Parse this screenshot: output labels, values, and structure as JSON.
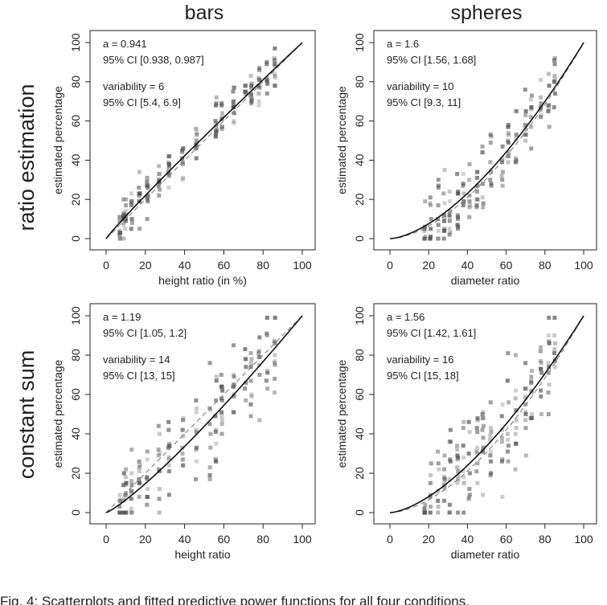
{
  "figure": {
    "caption": "Fig. 4: Scatterplots and fitted predictive power functions for all four conditions.",
    "col_titles": [
      "bars",
      "spheres"
    ],
    "row_titles": [
      "ratio estimation",
      "constant sum"
    ]
  },
  "chart_data": [
    {
      "type": "scatter",
      "id": "bars-ratio",
      "xlabel": "height ratio (in %)",
      "ylabel": "estimated percentage",
      "xlim": [
        0,
        100
      ],
      "ylim": [
        0,
        100
      ],
      "xticks": [
        0,
        20,
        40,
        60,
        80,
        100
      ],
      "yticks": [
        0,
        20,
        40,
        60,
        80,
        100
      ],
      "annotations": [
        "a = 0.941",
        "95% CI [0.938, 0.987]",
        "variability = 6",
        "95% CI [5.4, 6.9]"
      ],
      "fit": {
        "exponent": 0.941,
        "form": "y = 100 (x/100)^a"
      },
      "reference": "y = x (dashed)",
      "x_levels": [
        7,
        9,
        10,
        13,
        17,
        21,
        27,
        32,
        39,
        46,
        56,
        59,
        65,
        71,
        74,
        78,
        82,
        86
      ],
      "variability": 6,
      "seed": 11
    },
    {
      "type": "scatter",
      "id": "spheres-ratio",
      "xlabel": "diameter ratio",
      "ylabel": "estimated percentage",
      "xlim": [
        0,
        100
      ],
      "ylim": [
        0,
        100
      ],
      "xticks": [
        0,
        20,
        40,
        60,
        80,
        100
      ],
      "yticks": [
        0,
        20,
        40,
        60,
        80,
        100
      ],
      "annotations": [
        "a = 1.6",
        "95% CI [1.56, 1.68]",
        "variability = 10",
        "95% CI [9.3, 11]"
      ],
      "fit": {
        "exponent": 1.6,
        "form": "y = 100 (x/100)^a"
      },
      "reference": "y = x^1.7 (dashed)",
      "x_levels": [
        18,
        21,
        25,
        28,
        31,
        35,
        38,
        41,
        45,
        48,
        52,
        58,
        61,
        65,
        70,
        73,
        78,
        82,
        85
      ],
      "variability": 10,
      "seed": 23
    },
    {
      "type": "scatter",
      "id": "bars-constant",
      "xlabel": "height ratio",
      "ylabel": "estimated percentage",
      "xlim": [
        0,
        100
      ],
      "ylim": [
        0,
        100
      ],
      "xticks": [
        0,
        20,
        40,
        60,
        80,
        100
      ],
      "yticks": [
        0,
        20,
        40,
        60,
        80,
        100
      ],
      "annotations": [
        "a = 1.19",
        "95% CI [1.05, 1.2]",
        "variability = 14",
        "95% CI [13, 15]"
      ],
      "fit": {
        "exponent": 1.19,
        "form": "y = 100 (x/100)^a"
      },
      "reference": "y = x (dashed)",
      "x_levels": [
        7,
        9,
        10,
        13,
        17,
        21,
        27,
        32,
        39,
        46,
        53,
        56,
        59,
        65,
        71,
        74,
        78,
        82,
        86
      ],
      "variability": 14,
      "seed": 37
    },
    {
      "type": "scatter",
      "id": "spheres-constant",
      "xlabel": "diameter ratio",
      "ylabel": "estimated percentage",
      "xlim": [
        0,
        100
      ],
      "ylim": [
        0,
        100
      ],
      "xticks": [
        0,
        20,
        40,
        60,
        80,
        100
      ],
      "yticks": [
        0,
        20,
        40,
        60,
        80,
        100
      ],
      "annotations": [
        "a = 1.56",
        "95% CI [1.42, 1.61]",
        "variability = 16",
        "95% CI [15, 18]"
      ],
      "fit": {
        "exponent": 1.56,
        "form": "y = 100 (x/100)^a"
      },
      "reference": "y = x^1.7 (dashed)",
      "x_levels": [
        18,
        21,
        25,
        28,
        31,
        35,
        38,
        41,
        45,
        48,
        52,
        58,
        61,
        65,
        70,
        73,
        78,
        82,
        85
      ],
      "variability": 16,
      "seed": 53
    }
  ]
}
